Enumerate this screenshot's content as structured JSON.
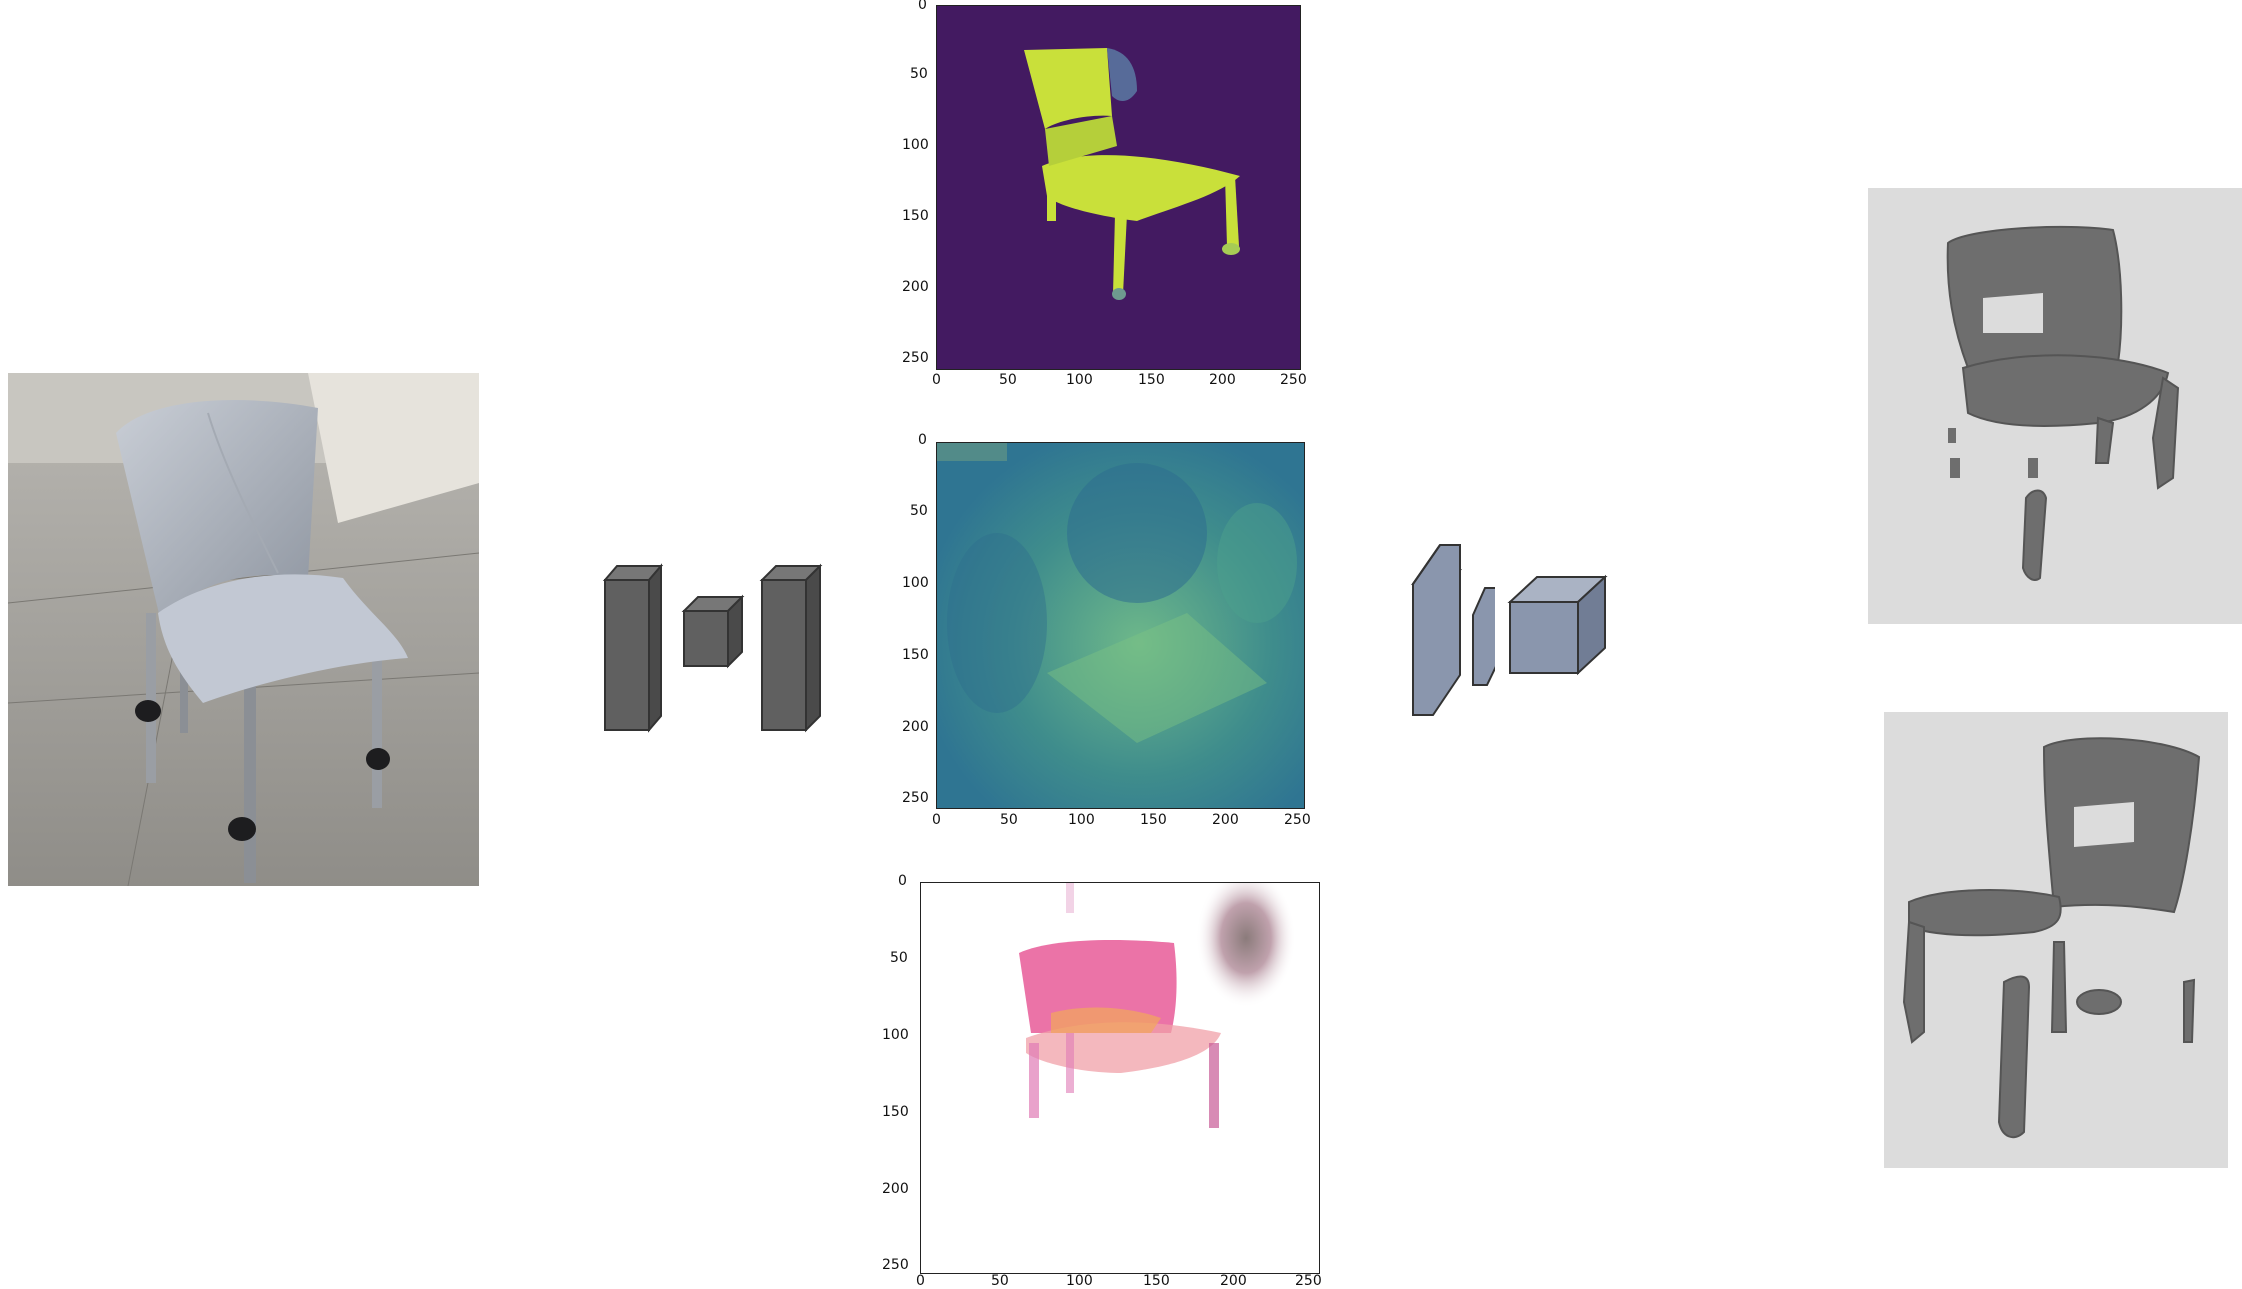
{
  "input_photo": {
    "subject": "chair-photo"
  },
  "plots": [
    {
      "name": "mask-plot",
      "x_ticks": [
        "0",
        "50",
        "100",
        "150",
        "200",
        "250"
      ],
      "y_ticks": [
        "0",
        "50",
        "100",
        "150",
        "200",
        "250"
      ]
    },
    {
      "name": "depth-plot",
      "x_ticks": [
        "0",
        "50",
        "100",
        "150",
        "200",
        "250"
      ],
      "y_ticks": [
        "0",
        "50",
        "100",
        "150",
        "200",
        "250"
      ]
    },
    {
      "name": "color-plot",
      "x_ticks": [
        "0",
        "50",
        "100",
        "150",
        "200",
        "250"
      ],
      "y_ticks": [
        "0",
        "50",
        "100",
        "150",
        "200",
        "250"
      ]
    }
  ],
  "colors": {
    "encoder_block": "#606060",
    "decoder_block": "#8a96ad",
    "mask_background": "#431a61",
    "mask_foreground": "#c9e03a",
    "mesh": "#6e6e6e",
    "mesh_panel": "#dcdcdc"
  },
  "icons": [
    "encoder-icon",
    "decoder-icon",
    "voxel-cube-icon"
  ]
}
